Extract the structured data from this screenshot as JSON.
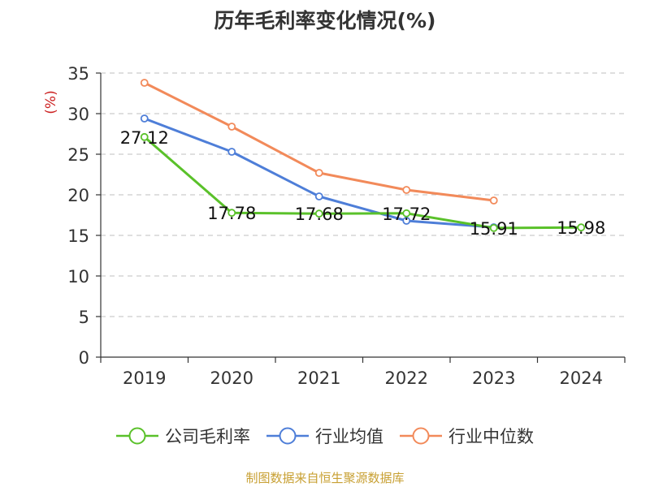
{
  "colors": {
    "company": "#5ac12a",
    "industry_avg": "#4e7ed8",
    "industry_median": "#f28a5a",
    "ylabel": "#cc2222",
    "grid": "#cccccc",
    "axis": "#333333",
    "source": "#c8a033"
  },
  "chart_data": {
    "type": "line",
    "title": "历年毛利率变化情况(%)",
    "xlabel": "",
    "ylabel": "(%)",
    "ylim": [
      0,
      35
    ],
    "yticks": [
      0,
      5,
      10,
      15,
      20,
      25,
      30,
      35
    ],
    "categories": [
      "2019",
      "2020",
      "2021",
      "2022",
      "2023",
      "2024"
    ],
    "grid": true,
    "legend_position": "bottom",
    "series": [
      {
        "key": "company",
        "name": "公司毛利率",
        "values": [
          27.12,
          17.78,
          17.68,
          17.72,
          15.91,
          15.98
        ],
        "labels": [
          "27.12",
          "17.78",
          "17.68",
          "17.72",
          "15.91",
          "15.98"
        ]
      },
      {
        "key": "industry_avg",
        "name": "行业均值",
        "values": [
          29.4,
          25.3,
          19.8,
          16.8,
          16.0,
          null
        ]
      },
      {
        "key": "industry_median",
        "name": "行业中位数",
        "values": [
          33.8,
          28.4,
          22.7,
          20.6,
          19.3,
          null
        ]
      }
    ]
  },
  "source": "制图数据来自恒生聚源数据库"
}
